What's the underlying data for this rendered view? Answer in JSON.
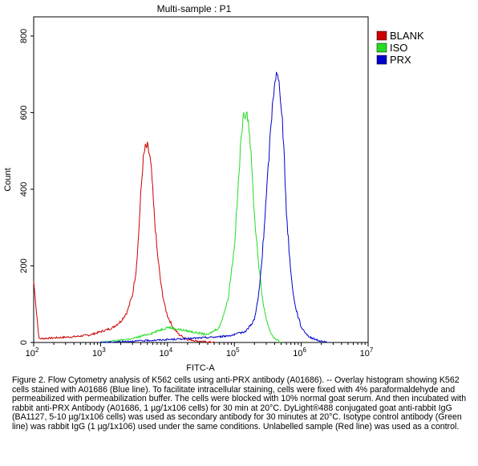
{
  "chart_data": {
    "type": "line",
    "title": "Multi-sample : P1",
    "xlabel": "FITC-A",
    "ylabel": "Count",
    "x_scale": "log",
    "xlim": [
      100,
      10000000
    ],
    "ylim": [
      0,
      850
    ],
    "x_ticks": [
      {
        "value": 100,
        "base": "10",
        "exp": "2"
      },
      {
        "value": 1000,
        "base": "10",
        "exp": "3"
      },
      {
        "value": 10000,
        "base": "10",
        "exp": "4"
      },
      {
        "value": 100000,
        "base": "10",
        "exp": "5"
      },
      {
        "value": 1000000,
        "base": "10",
        "exp": "6"
      },
      {
        "value": 10000000,
        "base": "10",
        "exp": "7"
      }
    ],
    "y_ticks": [
      {
        "value": 0,
        "label": "0"
      },
      {
        "value": 200,
        "label": "200"
      },
      {
        "value": 400,
        "label": "400"
      },
      {
        "value": 600,
        "label": "600"
      },
      {
        "value": 800,
        "label": "800"
      }
    ],
    "grid": false,
    "legend_position": "top-right",
    "series": [
      {
        "name": "BLANK",
        "color": "#cc0000",
        "x": [
          100,
          120,
          200,
          400,
          700,
          1000,
          1500,
          2000,
          2500,
          3000,
          3400,
          3700,
          4000,
          4300,
          4600,
          5000,
          5400,
          5800,
          6300,
          7000,
          8000,
          9000,
          10000,
          12000,
          15000,
          20000,
          30000,
          50000
        ],
        "y": [
          160,
          10,
          12,
          15,
          20,
          28,
          38,
          55,
          80,
          125,
          190,
          280,
          390,
          470,
          505,
          510,
          490,
          440,
          340,
          240,
          150,
          100,
          70,
          40,
          20,
          8,
          3,
          0
        ]
      },
      {
        "name": "ISO",
        "color": "#22dd22",
        "x": [
          1000,
          3000,
          6000,
          10000,
          20000,
          40000,
          60000,
          80000,
          100000,
          110000,
          120000,
          130000,
          140000,
          150000,
          160000,
          170000,
          180000,
          200000,
          230000,
          260000,
          300000,
          350000,
          400000,
          500000
        ],
        "y": [
          0,
          10,
          25,
          40,
          30,
          20,
          40,
          110,
          250,
          360,
          470,
          560,
          595,
          605,
          590,
          540,
          470,
          330,
          210,
          120,
          60,
          25,
          10,
          0
        ]
      },
      {
        "name": "PRX",
        "color": "#0000cc",
        "x": [
          1000,
          5000,
          20000,
          60000,
          100000,
          150000,
          200000,
          230000,
          260000,
          290000,
          320000,
          350000,
          380000,
          400000,
          420000,
          450000,
          480000,
          520000,
          560000,
          600000,
          700000,
          800000,
          1000000,
          1300000,
          1800000,
          2500000
        ],
        "y": [
          0,
          5,
          10,
          15,
          20,
          30,
          60,
          120,
          220,
          340,
          450,
          560,
          640,
          680,
          700,
          690,
          660,
          590,
          470,
          340,
          180,
          100,
          40,
          15,
          5,
          0
        ]
      }
    ]
  },
  "caption": "Figure 2. Flow Cytometry analysis of K562 cells using anti-PRX antibody (A01686).  -- Overlay histogram showing K562 cells stained with A01686 (Blue line). To facilitate intracellular staining, cells were fixed with 4% paraformaldehyde and permeabilized with permeabilization buffer. The cells were blocked with 10% normal goat serum. And then incubated with rabbit anti-PRX Antibody (A01686, 1 µg/1x106 cells) for 30 min at 20°C. DyLight®488 conjugated goat anti-rabbit IgG (BA1127, 5-10 µg/1x106 cells) was used as secondary antibody for 30 minutes at 20°C. Isotype control antibody (Green line) was rabbit IgG (1 µg/1x106) used under the same conditions. Unlabelled sample (Red line) was used as a control."
}
